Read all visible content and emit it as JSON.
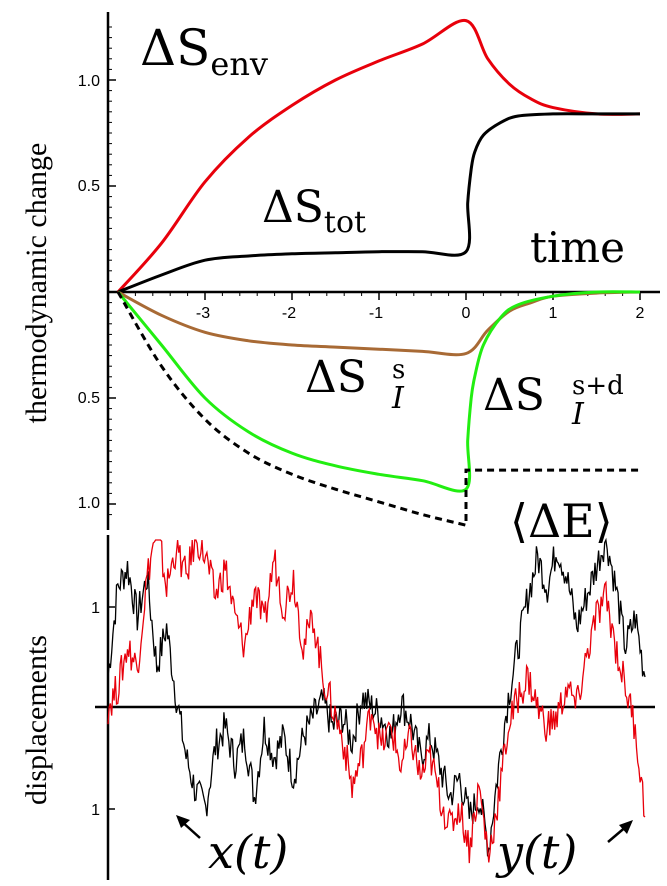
{
  "chart_data": [
    {
      "type": "line",
      "ylabel": "thermodynamic change",
      "xlabel": "time",
      "xlim": [
        -4,
        2.1
      ],
      "ylim": [
        -1.1,
        1.3
      ],
      "x_ticks": [
        "-3",
        "-2",
        "-1",
        "0",
        "1",
        "2"
      ],
      "y_ticks_upper": [
        "0.5",
        "1.0"
      ],
      "y_ticks_lower": [
        "0.5",
        "1.0"
      ],
      "colors": {
        "env": "#e8000b",
        "tot": "#000000",
        "s": "#a86a35",
        "sd": "#22ee11",
        "E": "#000000"
      },
      "labels": {
        "env_base": "ΔS",
        "env_sub": "env",
        "tot_base": "ΔS",
        "tot_sub": "tot",
        "s_base": "ΔS",
        "s_sub": "I",
        "s_sup": "s",
        "sd_base": "ΔS",
        "sd_sub": "I",
        "sd_sup": "s+d",
        "E_label": "⟨ΔE⟩"
      },
      "series": [
        {
          "key": "env",
          "x": [
            -4,
            -3.5,
            -3,
            -2.5,
            -2,
            -1.5,
            -1,
            -0.5,
            0,
            0.25,
            0.5,
            0.75,
            1,
            1.5,
            2
          ],
          "y": [
            0,
            0.23,
            0.52,
            0.73,
            0.88,
            1.0,
            1.09,
            1.17,
            1.28,
            1.1,
            0.98,
            0.91,
            0.87,
            0.84,
            0.84
          ]
        },
        {
          "key": "tot",
          "x": [
            -4,
            -3.5,
            -3,
            -2.5,
            -2,
            -1.5,
            -1,
            -0.5,
            0,
            0.02,
            0.06,
            0.1,
            0.2,
            0.4,
            0.6,
            1,
            1.5,
            2
          ],
          "y": [
            0,
            0.08,
            0.15,
            0.17,
            0.18,
            0.185,
            0.19,
            0.19,
            0.19,
            0.42,
            0.58,
            0.66,
            0.74,
            0.8,
            0.83,
            0.84,
            0.84,
            0.84
          ]
        },
        {
          "key": "s",
          "x": [
            -4,
            -3.5,
            -3,
            -2.5,
            -2,
            -1.5,
            -1,
            -0.5,
            0,
            0.25,
            0.5,
            0.75,
            1,
            1.5,
            2
          ],
          "y": [
            0,
            -0.11,
            -0.19,
            -0.23,
            -0.25,
            -0.26,
            -0.27,
            -0.28,
            -0.29,
            -0.18,
            -0.09,
            -0.05,
            -0.02,
            -0.005,
            0
          ]
        },
        {
          "key": "sd",
          "x": [
            -4,
            -3.5,
            -3,
            -2.5,
            -2,
            -1.5,
            -1,
            -0.5,
            0,
            0.02,
            0.06,
            0.1,
            0.2,
            0.4,
            0.6,
            1,
            1.5,
            2
          ],
          "y": [
            0,
            -0.25,
            -0.5,
            -0.66,
            -0.76,
            -0.82,
            -0.86,
            -0.89,
            -0.93,
            -0.7,
            -0.5,
            -0.4,
            -0.25,
            -0.12,
            -0.06,
            -0.02,
            0,
            0
          ]
        },
        {
          "key": "E",
          "x": [
            -4,
            -3.5,
            -3,
            -2.5,
            -2,
            -1.5,
            -1,
            -0.5,
            0,
            0,
            2
          ],
          "y": [
            0,
            -0.35,
            -0.6,
            -0.76,
            -0.86,
            -0.93,
            -0.99,
            -1.05,
            -1.1,
            -0.84,
            -0.84
          ]
        }
      ]
    },
    {
      "type": "line",
      "ylabel": "displacements",
      "y_ticks": [
        "1",
        "1"
      ],
      "ylim": [
        -1.6,
        1.6
      ],
      "x_label": "x(t)",
      "y_label": "y(t)",
      "series": [
        {
          "key": "x",
          "color": "#000000",
          "y": [
            0.3,
            1.2,
            1.4,
            0.9,
            1.3,
            0.4,
            0.8,
            0.1,
            -0.5,
            -0.85,
            -1.0,
            -0.4,
            -0.2,
            -0.55,
            -0.3,
            -0.9,
            -0.2,
            -0.5,
            -0.3,
            -0.7,
            -0.3,
            -0.1,
            0.05,
            -0.2,
            -0.1,
            -0.35,
            0.1,
            0.0,
            -0.1,
            -0.3,
            0.05,
            -0.15,
            -0.5,
            -0.3,
            -0.6,
            -0.9,
            -0.7,
            -1.1,
            -0.9,
            -1.4,
            -0.6,
            0.1,
            0.6,
            1.1,
            1.5,
            1.2,
            1.6,
            1.3,
            0.8,
            1.1,
            1.4,
            1.7,
            1.2,
            0.6,
            0.9,
            0.3
          ]
        },
        {
          "key": "y",
          "color": "#e8000b",
          "y": [
            0.0,
            0.2,
            0.6,
            0.4,
            1.3,
            1.8,
            1.2,
            1.6,
            1.3,
            1.7,
            1.5,
            1.1,
            1.4,
            0.9,
            0.6,
            1.2,
            0.8,
            1.5,
            1.0,
            1.3,
            0.6,
            0.9,
            0.3,
            0.0,
            -0.3,
            -0.8,
            -0.5,
            0.0,
            -0.4,
            -0.2,
            -0.6,
            -0.3,
            -0.7,
            -0.5,
            -0.9,
            -1.2,
            -1.0,
            -1.4,
            -0.8,
            -1.5,
            -0.9,
            -0.2,
            0.1,
            0.3,
            0.0,
            -0.2,
            -0.1,
            0.2,
            0.0,
            0.5,
            0.9,
            1.1,
            0.6,
            0.2,
            -0.2,
            -1.1
          ]
        }
      ]
    }
  ]
}
